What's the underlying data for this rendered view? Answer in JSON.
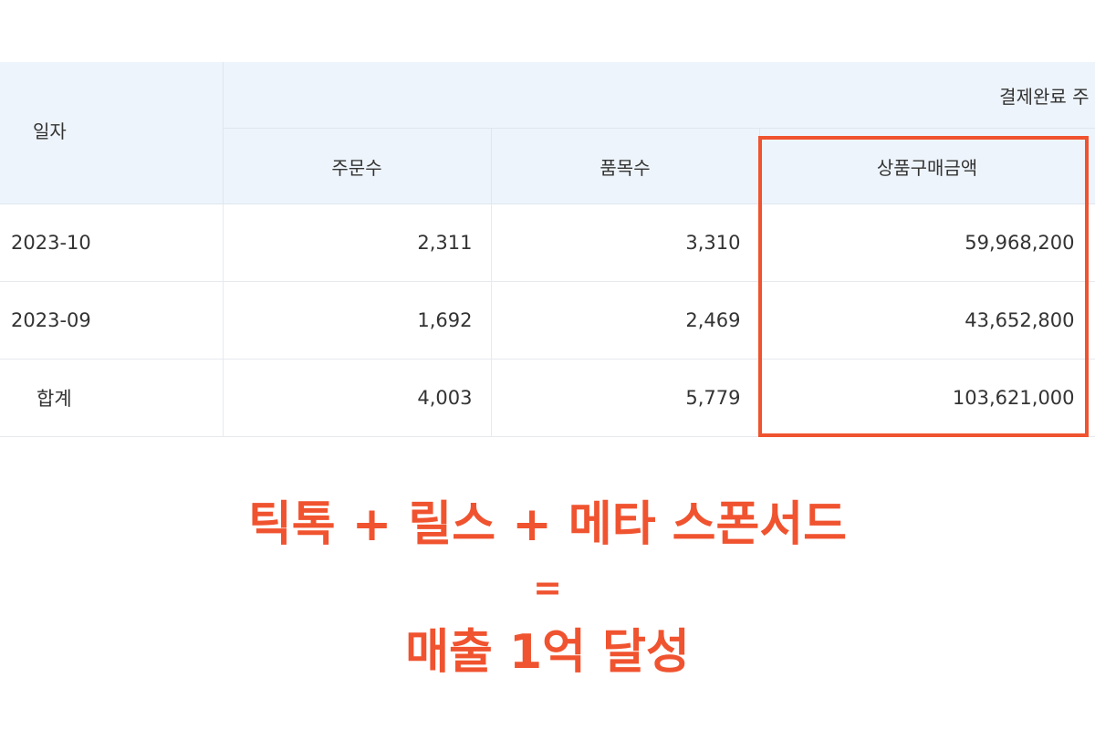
{
  "table": {
    "date_header": "일자",
    "group_header": "결제완료 주",
    "columns": [
      "주문수",
      "품목수",
      "상품구매금액"
    ],
    "rows": [
      {
        "date": "2023-10",
        "orders": "2,311",
        "items": "3,310",
        "amount": "59,968,200"
      },
      {
        "date": "2023-09",
        "orders": "1,692",
        "items": "2,469",
        "amount": "43,652,800"
      },
      {
        "date": "합계",
        "orders": "4,003",
        "items": "5,779",
        "amount": "103,621,000"
      }
    ]
  },
  "caption": {
    "line1": "틱톡 + 릴스 + 메타 스폰서드",
    "equals": "=",
    "line2": "매출 1억 달성"
  },
  "colors": {
    "accent": "#f0532f",
    "header_bg": "#eef4fb",
    "text": "#333333"
  }
}
